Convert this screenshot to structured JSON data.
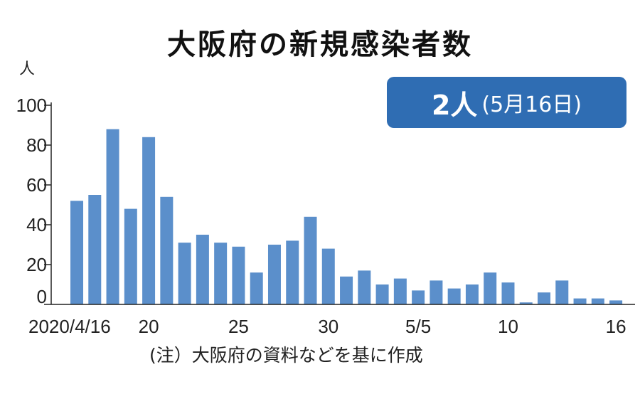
{
  "title": "大阪府の新規感染者数",
  "badge": {
    "value": "2人",
    "date": "(5月16日)"
  },
  "note": "(注）大阪府の資料などを基に作成",
  "colors": {
    "bar": "#5b8fcb",
    "badge": "#2f6db3"
  },
  "chart_data": {
    "type": "bar",
    "ylabel": "人",
    "ylim": [
      0,
      100
    ],
    "yticks": [
      0,
      20,
      40,
      60,
      80,
      100
    ],
    "categories": [
      "4/16",
      "4/17",
      "4/18",
      "4/19",
      "4/20",
      "4/21",
      "4/22",
      "4/23",
      "4/24",
      "4/25",
      "4/26",
      "4/27",
      "4/28",
      "4/29",
      "4/30",
      "5/1",
      "5/2",
      "5/3",
      "5/4",
      "5/5",
      "5/6",
      "5/7",
      "5/8",
      "5/9",
      "5/10",
      "5/11",
      "5/12",
      "5/13",
      "5/14",
      "5/15",
      "5/16"
    ],
    "values": [
      52,
      55,
      88,
      48,
      84,
      54,
      31,
      35,
      31,
      29,
      16,
      30,
      32,
      44,
      28,
      14,
      17,
      10,
      13,
      7,
      12,
      8,
      10,
      16,
      11,
      1,
      6,
      12,
      3,
      3,
      2
    ],
    "xtick_labels": [
      {
        "index": 0,
        "label": "2020/4/16"
      },
      {
        "index": 4,
        "label": "20"
      },
      {
        "index": 9,
        "label": "25"
      },
      {
        "index": 14,
        "label": "30"
      },
      {
        "index": 19,
        "label": "5/5"
      },
      {
        "index": 24,
        "label": "10"
      },
      {
        "index": 30,
        "label": "16"
      }
    ]
  }
}
